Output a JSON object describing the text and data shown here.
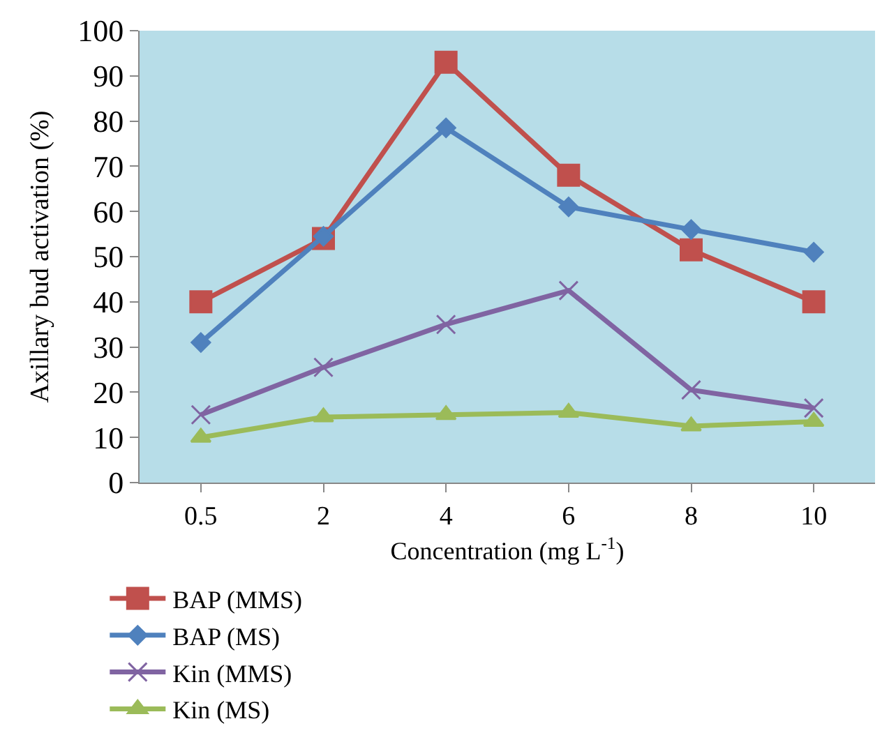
{
  "chart_data": {
    "type": "line",
    "xlabel": "Concentration (mg L$^{-1}$)",
    "ylabel": "Axillary bud activation (%)",
    "categories": [
      "0.5",
      "2",
      "4",
      "6",
      "8",
      "10"
    ],
    "ylim": [
      0,
      100
    ],
    "yticks": [
      0,
      10,
      20,
      30,
      40,
      50,
      60,
      70,
      80,
      90,
      100
    ],
    "grid": false,
    "legend": "bottom left",
    "series": [
      {
        "name": "BAP (MMS)",
        "color": "#c0504d",
        "marker": "square",
        "values": [
          40,
          54,
          93,
          68,
          51.5,
          40
        ]
      },
      {
        "name": "BAP (MS)",
        "color": "#4f81bd",
        "marker": "diamond",
        "values": [
          31,
          54.5,
          78.5,
          61,
          56,
          51
        ]
      },
      {
        "name": "Kin (MMS)",
        "color": "#8064a2",
        "marker": "cross",
        "values": [
          15,
          25.5,
          35,
          42.5,
          20.5,
          16.5
        ]
      },
      {
        "name": "Kin (MS)",
        "color": "#9bbb59",
        "marker": "triangle",
        "values": [
          10,
          14.5,
          15,
          15.5,
          12.5,
          13.5
        ]
      }
    ]
  }
}
